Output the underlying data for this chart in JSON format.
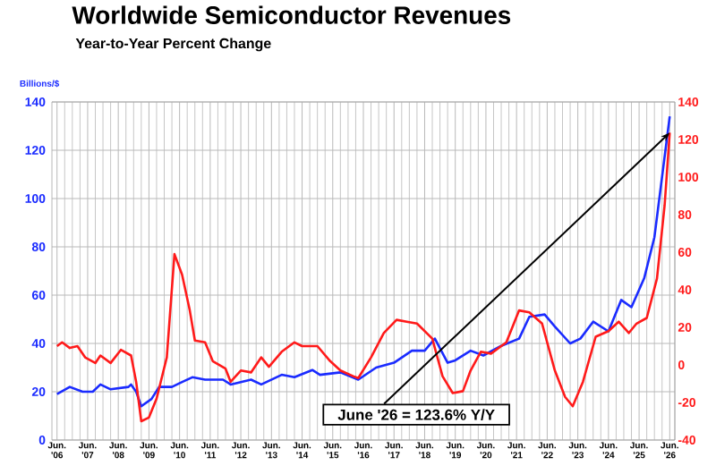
{
  "chart_data": {
    "type": "line",
    "title": "Worldwide Semiconductor Revenues",
    "subtitle": "Year-to-Year Percent Change",
    "ylabel": "Billions/$",
    "xlim": [
      "2006-04",
      "2026-08"
    ],
    "xticks": [
      {
        "value": "2006-06",
        "label": "Jun. '06"
      },
      {
        "value": "2007-06",
        "label": "Jun. '07"
      },
      {
        "value": "2008-06",
        "label": "Jun. '08"
      },
      {
        "value": "2009-06",
        "label": "Jun. '09"
      },
      {
        "value": "2010-06",
        "label": "Jun. '10"
      },
      {
        "value": "2011-06",
        "label": "Jun. '11"
      },
      {
        "value": "2012-06",
        "label": "Jun. '12"
      },
      {
        "value": "2013-06",
        "label": "Jun. '13"
      },
      {
        "value": "2014-06",
        "label": "Jun. '14"
      },
      {
        "value": "2015-06",
        "label": "Jun. '15"
      },
      {
        "value": "2016-06",
        "label": "Jun. '16"
      },
      {
        "value": "2017-06",
        "label": "Jun. '17"
      },
      {
        "value": "2018-06",
        "label": "Jun. '18"
      },
      {
        "value": "2019-06",
        "label": "Jun. '19"
      },
      {
        "value": "2020-06",
        "label": "Jun. '20"
      },
      {
        "value": "2021-06",
        "label": "Jun. '21"
      },
      {
        "value": "2022-06",
        "label": "Jun. '22"
      },
      {
        "value": "2023-06",
        "label": "Jun. '23"
      },
      {
        "value": "2024-06",
        "label": "Jun. '24"
      },
      {
        "value": "2025-06",
        "label": "Jun. '25"
      },
      {
        "value": "2026-06",
        "label": "Jun. '26"
      }
    ],
    "ylim": [
      0,
      140
    ],
    "yticks": [
      0,
      20,
      40,
      60,
      80,
      100,
      120,
      140
    ],
    "y2lim": [
      -40,
      140
    ],
    "y2ticks": [
      -40,
      -20,
      0,
      20,
      40,
      60,
      80,
      100,
      120,
      140
    ],
    "grid": true,
    "series": [
      {
        "color": "#1a2bff",
        "x": [
          "2006-06",
          "2006-11",
          "2007-04",
          "2007-08",
          "2007-11",
          "2008-03",
          "2008-10",
          "2008-11",
          "2009-01",
          "2009-03",
          "2009-07",
          "2009-10",
          "2010-03",
          "2010-07",
          "2010-11",
          "2011-04",
          "2011-11",
          "2012-02",
          "2012-06",
          "2012-10",
          "2013-02",
          "2013-10",
          "2014-03",
          "2014-10",
          "2015-01",
          "2015-09",
          "2016-04",
          "2016-11",
          "2017-06",
          "2018-01",
          "2018-06",
          "2018-10",
          "2019-03",
          "2019-06",
          "2019-12",
          "2020-05",
          "2020-12",
          "2021-07",
          "2021-11",
          "2022-05",
          "2022-09",
          "2023-03",
          "2023-07",
          "2023-12",
          "2024-06",
          "2024-11",
          "2025-03",
          "2025-08",
          "2025-12",
          "2026-06"
        ],
        "values": [
          19,
          22,
          20,
          20,
          23,
          21,
          22,
          23,
          20,
          14,
          17,
          22,
          22,
          24,
          26,
          25,
          25,
          23,
          24,
          25,
          23,
          27,
          26,
          29,
          27,
          28,
          25,
          30,
          32,
          37,
          37,
          42,
          32,
          33,
          37,
          35,
          39,
          42,
          51,
          52,
          47,
          40,
          42,
          49,
          45,
          58,
          55,
          67,
          84,
          134
        ]
      },
      {
        "color": "#ff1a1a",
        "axis": "y2",
        "x": [
          "2006-06",
          "2006-08",
          "2006-11",
          "2007-02",
          "2007-05",
          "2007-09",
          "2007-11",
          "2008-03",
          "2008-07",
          "2008-11",
          "2009-01",
          "2009-03",
          "2009-06",
          "2009-09",
          "2010-01",
          "2010-04",
          "2010-07",
          "2010-10",
          "2010-12",
          "2011-04",
          "2011-07",
          "2011-12",
          "2012-02",
          "2012-06",
          "2012-10",
          "2013-02",
          "2013-05",
          "2013-10",
          "2014-03",
          "2014-06",
          "2014-12",
          "2015-05",
          "2015-09",
          "2016-02",
          "2016-04",
          "2016-09",
          "2017-02",
          "2017-07",
          "2017-11",
          "2018-03",
          "2018-09",
          "2019-01",
          "2019-05",
          "2019-09",
          "2019-12",
          "2020-04",
          "2020-08",
          "2021-02",
          "2021-07",
          "2021-11",
          "2022-04",
          "2022-09",
          "2023-01",
          "2023-04",
          "2023-08",
          "2024-01",
          "2024-06",
          "2024-10",
          "2025-02",
          "2025-05",
          "2025-09",
          "2026-01",
          "2026-04",
          "2026-06"
        ],
        "values": [
          10,
          12,
          9,
          10,
          4,
          1,
          5,
          1,
          8,
          5,
          -9,
          -30,
          -28,
          -18,
          4,
          59,
          48,
          29,
          13,
          12,
          2,
          -2,
          -9,
          -3,
          -4,
          4,
          -1,
          7,
          12,
          10,
          10,
          2,
          -3,
          -6,
          -7,
          4,
          17,
          24,
          23,
          22,
          14,
          -6,
          -15,
          -14,
          -3,
          7,
          6,
          12,
          29,
          28,
          22,
          -3,
          -17,
          -22,
          -9,
          15,
          18,
          23,
          17,
          22,
          25,
          46,
          85,
          123.6
        ]
      }
    ],
    "annotations": [
      {
        "text": "June '26 = 123.6% Y/Y",
        "x": "2026-06",
        "y": 123.6
      }
    ]
  }
}
